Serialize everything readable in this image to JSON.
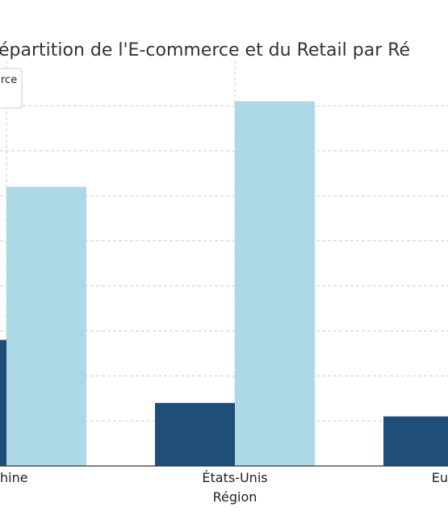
{
  "chart_data": {
    "type": "bar",
    "title": "Répartition de l'E-commerce et du Retail par Région",
    "xlabel": "Région",
    "ylabel": "",
    "categories": [
      "Chine",
      "États-Unis",
      "Europe"
    ],
    "series": [
      {
        "name": "E-commerce",
        "values": [
          28.0,
          14.0,
          11.0
        ],
        "color": "#1f4e79"
      },
      {
        "name": "",
        "values": [
          62.0,
          81.0,
          0
        ],
        "color": "#add8e6"
      }
    ],
    "ylim": [
      0,
      82
    ],
    "grid": true,
    "legend_position": "top-left",
    "visible_title_text": "épartition de l'E-commerce et du Retail par Ré",
    "visible_tick_labels": [
      "hine",
      "États-Unis",
      "Eu"
    ],
    "visible_legend_text": "rce"
  }
}
